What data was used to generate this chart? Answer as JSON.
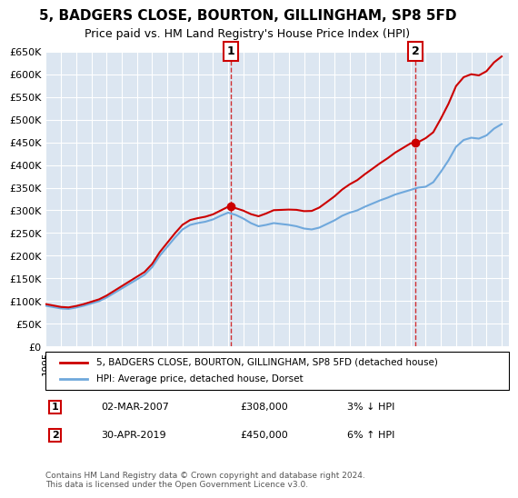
{
  "title": "5, BADGERS CLOSE, BOURTON, GILLINGHAM, SP8 5FD",
  "subtitle": "Price paid vs. HM Land Registry's House Price Index (HPI)",
  "legend_line1": "5, BADGERS CLOSE, BOURTON, GILLINGHAM, SP8 5FD (detached house)",
  "legend_line2": "HPI: Average price, detached house, Dorset",
  "annotation1_date": "02-MAR-2007",
  "annotation1_price": "£308,000",
  "annotation1_pct": "3% ↓ HPI",
  "annotation2_date": "30-APR-2019",
  "annotation2_price": "£450,000",
  "annotation2_pct": "6% ↑ HPI",
  "footer": "Contains HM Land Registry data © Crown copyright and database right 2024.\nThis data is licensed under the Open Government Licence v3.0.",
  "sale1_year": 2007.17,
  "sale1_value": 308000,
  "sale2_year": 2019.33,
  "sale2_value": 450000,
  "hpi_color": "#6fa8dc",
  "price_color": "#cc0000",
  "bg_color": "#dce6f1",
  "plot_bg": "#dce6f1",
  "ylim": [
    0,
    650000
  ],
  "xlim_start": 1995,
  "xlim_end": 2025.5
}
